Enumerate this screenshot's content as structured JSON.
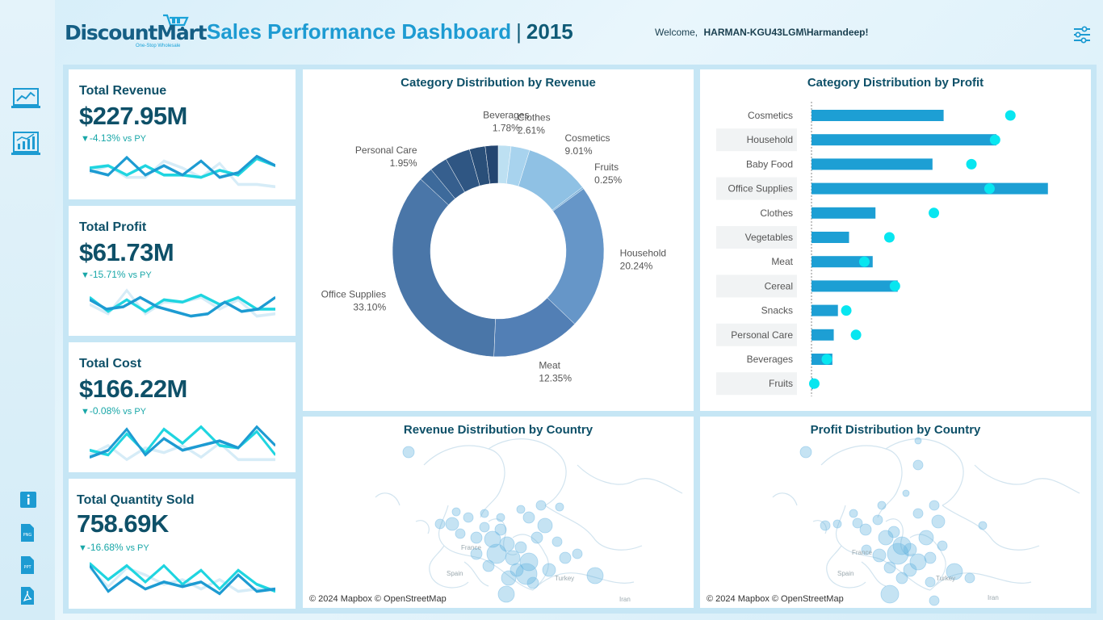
{
  "logo": {
    "name": "DiscountMart",
    "tagline": "One-Stop Wholesale"
  },
  "header": {
    "title": "Sales Performance Dashboard",
    "separator": "|",
    "year": "2015",
    "welcome_prefix": "Welcome,",
    "user": "HARMAN-KGU43LGM\\Harmandeep!"
  },
  "nav": {
    "items": [
      {
        "icon": "line-chart-monitor-icon"
      },
      {
        "icon": "analytics-chart-icon"
      }
    ],
    "tools": [
      {
        "icon": "info-icon"
      },
      {
        "icon": "png-file-icon"
      },
      {
        "icon": "ppt-file-icon"
      },
      {
        "icon": "pdf-file-icon"
      }
    ],
    "filter_icon": "filter-sliders-icon"
  },
  "colors": {
    "accent": "#1d9bd2",
    "dark_text": "#0e5068",
    "positive_change": "#19a7a8",
    "bar": "#1d9fd4",
    "target_dot": "#08e6f0"
  },
  "kpis": [
    {
      "label": "Total Revenue",
      "value": "$227.95M",
      "change": "-4.13%",
      "vs": "vs PY"
    },
    {
      "label": "Total Profit",
      "value": "$61.73M",
      "change": "-15.71%",
      "vs": "vs PY"
    },
    {
      "label": "Total Cost",
      "value": "$166.22M",
      "change": "-0.08%",
      "vs": "vs PY"
    },
    {
      "label": "Total Quantity Sold",
      "value": "758.69K",
      "change": "-16.68%",
      "vs": "vs PY"
    }
  ],
  "panels": {
    "donut_title": "Category Distribution by Revenue",
    "bars_title": "Category Distribution by Profit",
    "map_revenue_title": "Revenue Distribution by Country",
    "map_profit_title": "Profit Distribution by Country",
    "map_credit": "© 2024 Mapbox © OpenStreetMap",
    "map_labels": [
      "France",
      "Spain",
      "Turkey",
      "Iran"
    ]
  },
  "chart_data": [
    {
      "type": "pie",
      "title": "Category Distribution by Revenue",
      "categories": [
        "Beverages",
        "Clothes",
        "Cosmetics",
        "Fruits",
        "Household",
        "Meat",
        "Office Supplies",
        "Personal Care",
        "Snacks",
        "Cereal",
        "Vegetables",
        "Baby Food"
      ],
      "values": [
        1.78,
        2.61,
        9.01,
        0.25,
        20.24,
        12.35,
        33.1,
        1.95,
        2.5,
        3.5,
        2.2,
        1.8
      ],
      "labels": [
        "1.78%",
        "2.61%",
        "9.01%",
        "0.25%",
        "20.24%",
        "12.35%",
        "33.10%",
        "1.95%",
        "",
        "",
        "",
        ""
      ],
      "colors": [
        "#bde0f2",
        "#a8d3ee",
        "#8fc1e4",
        "#7db2da",
        "#6696c8",
        "#527fb5",
        "#4a76a8",
        "#3d6a9b",
        "#365f8e",
        "#2f5683",
        "#2a4f79",
        "#244671"
      ]
    },
    {
      "type": "bar",
      "title": "Category Distribution by Profit",
      "categories": [
        "Cosmetics",
        "Household",
        "Baby Food",
        "Office Supplies",
        "Clothes",
        "Vegetables",
        "Meat",
        "Cereal",
        "Snacks",
        "Personal Care",
        "Beverages",
        "Fruits"
      ],
      "series": [
        {
          "values": [
            9.5,
            13.3,
            8.7,
            17.0,
            4.6,
            2.7,
            4.4,
            6.2,
            1.9,
            1.6,
            1.5,
            0.1
          ]
        },
        {
          "values": [
            14.3,
            13.2,
            11.5,
            12.8,
            8.8,
            5.6,
            3.8,
            6.0,
            2.5,
            3.2,
            1.1,
            0.2
          ]
        }
      ],
      "xlim": [
        0,
        18
      ]
    }
  ],
  "sparklines": [
    {
      "series": [
        [
          16,
          20,
          5,
          20,
          12,
          20,
          8,
          22,
          18,
          4,
          12
        ],
        [
          14,
          12,
          20,
          12,
          20,
          20,
          22,
          16,
          20,
          6,
          12
        ],
        [
          18,
          12,
          22,
          22,
          8,
          14,
          22,
          10,
          28,
          28,
          30
        ]
      ]
    },
    {
      "series": [
        [
          10,
          18,
          16,
          8,
          16,
          20,
          24,
          22,
          12,
          20,
          18,
          8
        ],
        [
          8,
          20,
          10,
          20,
          10,
          12,
          6,
          14,
          8,
          18,
          18
        ],
        [
          14,
          22,
          2,
          22,
          12,
          12,
          8,
          18,
          10,
          24,
          22
        ]
      ]
    },
    {
      "series": [
        [
          28,
          22,
          4,
          26,
          12,
          22,
          18,
          14,
          20,
          2,
          18
        ],
        [
          22,
          26,
          8,
          24,
          4,
          16,
          2,
          18,
          20,
          6,
          26
        ],
        [
          26,
          18,
          30,
          20,
          24,
          18,
          28,
          16,
          30,
          30,
          30
        ]
      ]
    },
    {
      "series": [
        [
          4,
          26,
          14,
          24,
          18,
          22,
          18,
          28,
          12,
          26,
          24
        ],
        [
          2,
          16,
          4,
          18,
          4,
          20,
          8,
          24,
          8,
          20,
          26
        ],
        [
          6,
          22,
          6,
          12,
          20,
          16,
          24,
          16,
          26,
          24,
          24
        ]
      ]
    }
  ]
}
